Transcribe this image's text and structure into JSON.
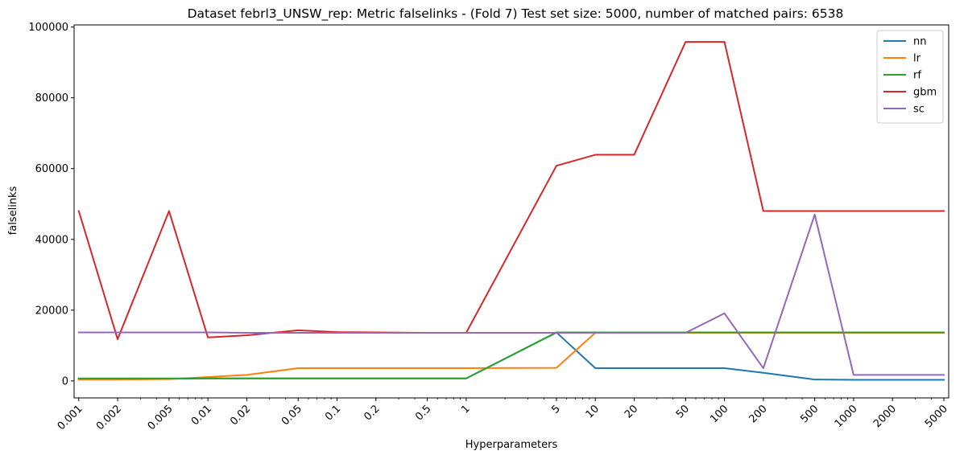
{
  "chart_data": {
    "type": "line",
    "title": "Dataset febrl3_UNSW_rep: Metric falselinks - (Fold 7) Test set size: 5000, number of matched pairs: 6538",
    "xlabel": "Hyperparameters",
    "ylabel": "falselinks",
    "xscale": "log",
    "xlim": [
      0.00092,
      5450
    ],
    "ylim": [
      -4800,
      100600
    ],
    "grid": false,
    "legend_position": "top-right",
    "x": [
      0.001,
      0.002,
      0.005,
      0.01,
      0.02,
      0.05,
      0.1,
      0.2,
      0.5,
      1,
      5,
      10,
      20,
      50,
      100,
      200,
      500,
      1000,
      2000,
      5000
    ],
    "x_tick_labels": [
      "0.001",
      "0.002",
      "0.005",
      "0.01",
      "0.02",
      "0.05",
      "0.1",
      "0.2",
      "0.5",
      "1",
      "5",
      "10",
      "20",
      "50",
      "100",
      "200",
      "500",
      "1000",
      "2000",
      "5000"
    ],
    "y_ticks": [
      0,
      20000,
      40000,
      60000,
      80000,
      100000
    ],
    "y_tick_labels": [
      "0",
      "20000",
      "40000",
      "60000",
      "80000",
      "100000"
    ],
    "series": [
      {
        "name": "nn",
        "color": "#1f77b4",
        "values": [
          500,
          500,
          600,
          700,
          700,
          700,
          700,
          700,
          700,
          700,
          13700,
          3600,
          3600,
          3600,
          3600,
          2300,
          400,
          300,
          300,
          300
        ]
      },
      {
        "name": "lr",
        "color": "#ff7f0e",
        "values": [
          400,
          400,
          500,
          1100,
          1700,
          3600,
          3600,
          3600,
          3600,
          3600,
          3700,
          13600,
          13600,
          13600,
          13600,
          13600,
          13600,
          13600,
          13600,
          13600
        ]
      },
      {
        "name": "rf",
        "color": "#2ca02c",
        "values": [
          700,
          700,
          700,
          700,
          700,
          700,
          700,
          700,
          700,
          700,
          13700,
          13700,
          13700,
          13700,
          13700,
          13700,
          13700,
          13700,
          13700,
          13700
        ]
      },
      {
        "name": "gbm",
        "color": "#d62728",
        "values": [
          48000,
          11800,
          48000,
          12300,
          12900,
          14300,
          13800,
          13700,
          13600,
          13600,
          60800,
          63900,
          63900,
          95800,
          95800,
          48000,
          48000,
          48000,
          48000,
          48000
        ]
      },
      {
        "name": "sc",
        "color": "#9467bd",
        "values": [
          13700,
          13700,
          13700,
          13700,
          13600,
          13600,
          13600,
          13600,
          13600,
          13600,
          13600,
          13600,
          13600,
          13600,
          19100,
          3600,
          47000,
          1700,
          1700,
          1700
        ]
      }
    ]
  }
}
